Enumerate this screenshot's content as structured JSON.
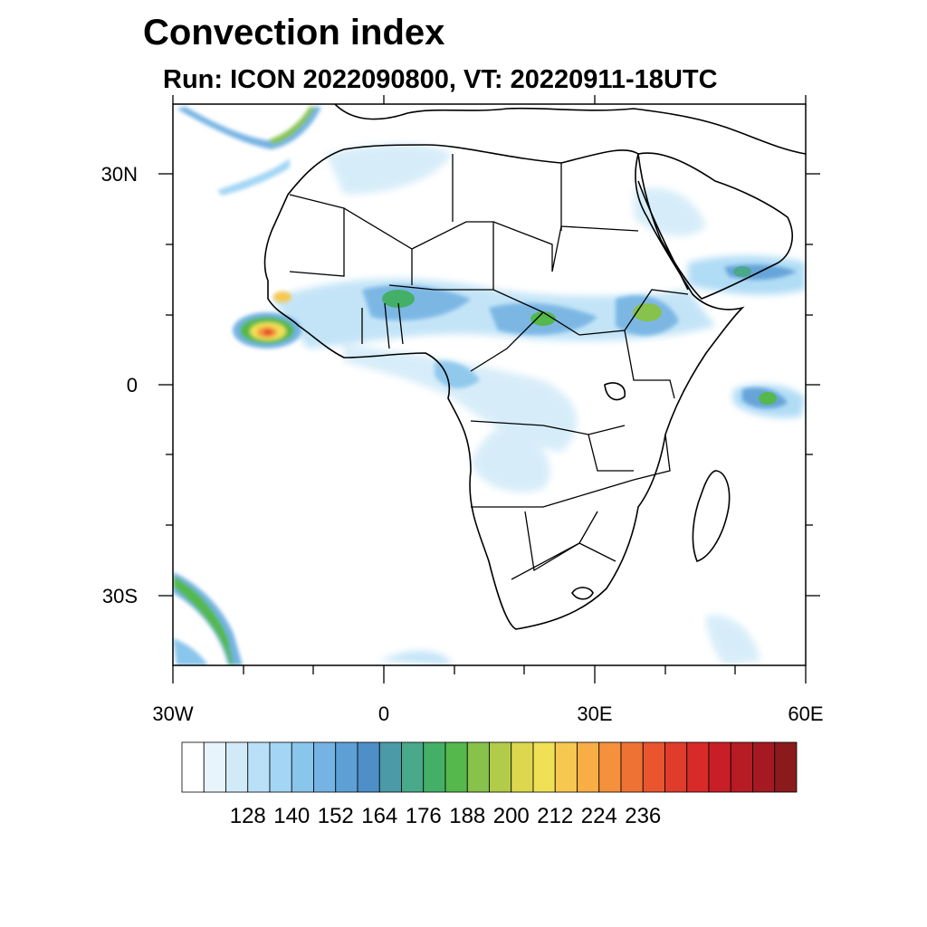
{
  "title": "Convection index",
  "subtitle": "Run: ICON 2022090800,  VT: 20220911-18UTC",
  "map": {
    "extent": {
      "lon_min": -30,
      "lon_max": 60,
      "lat_min": -40,
      "lat_max": 40
    },
    "lat_labels": [
      "30N",
      "0",
      "30S"
    ],
    "lon_labels": [
      "30W",
      "0",
      "30E",
      "60E"
    ]
  },
  "colorbar": {
    "colors": [
      "#ffffff",
      "#e8f4fb",
      "#d0eaf8",
      "#b9e0f6",
      "#a3d6f4",
      "#8ac6ec",
      "#74b3e3",
      "#5e9fd6",
      "#4d8fc6",
      "#4b9aa8",
      "#4aa98a",
      "#44b067",
      "#55b84d",
      "#86c24c",
      "#b2cc4a",
      "#dcd74f",
      "#efe055",
      "#f7c84f",
      "#f8ad45",
      "#f5903d",
      "#ef7235",
      "#e9552f",
      "#e03c2b",
      "#d82a29",
      "#c81f27",
      "#b71b24",
      "#a41922",
      "#8b1a1d"
    ],
    "labels": [
      "128",
      "140",
      "152",
      "164",
      "176",
      "188",
      "200",
      "212",
      "224",
      "236"
    ]
  }
}
